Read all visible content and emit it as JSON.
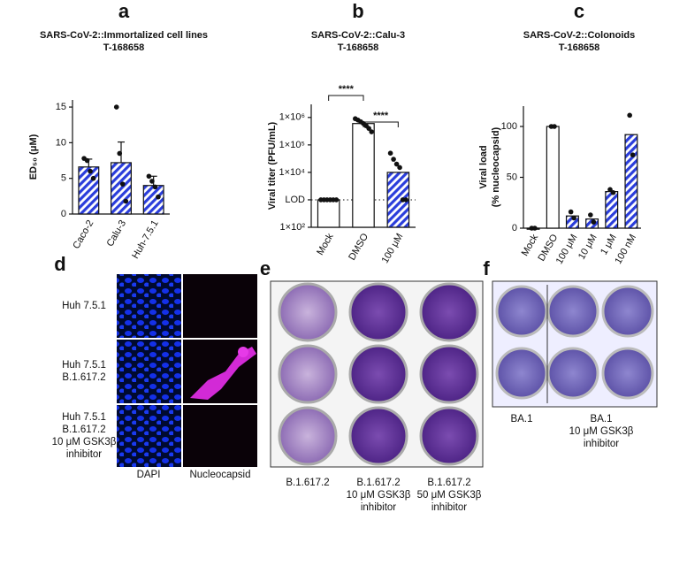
{
  "chart_data": [
    {
      "type": "bar",
      "label": "a",
      "title": "SARS-CoV-2::Immortalized cell lines",
      "subtitle": "T-168658",
      "y_label": [
        "ED₅₀ (μM)"
      ],
      "categories": [
        "Caco-2",
        "Calu-3",
        "Huh-7.5.1"
      ],
      "values": [
        6.6,
        7.2,
        4.0
      ],
      "errors": [
        1.1,
        2.9,
        1.3
      ],
      "points": [
        [
          7.8,
          7.5,
          6.0,
          5.0
        ],
        [
          15,
          8.5,
          4.2,
          1.8
        ],
        [
          5.3,
          4.6,
          3.8,
          2.4
        ]
      ],
      "hatched": [
        true,
        true,
        true
      ],
      "color": "#2a3ddb",
      "ylim": [
        0,
        16
      ],
      "yticks": [
        0,
        5,
        10,
        15
      ]
    },
    {
      "type": "bar",
      "label": "b",
      "title": "SARS-CoV-2::Calu-3",
      "subtitle": "T-168658",
      "y_label": [
        "Viral titer (PFU/mL)"
      ],
      "categories": [
        "Mock",
        "DMSO",
        "100 μM"
      ],
      "values": [
        1000,
        600000,
        10000
      ],
      "points": [
        [
          1000,
          1000,
          1000,
          1000,
          1000,
          1000
        ],
        [
          900000,
          800000,
          700000,
          600000,
          500000,
          400000,
          300000
        ],
        [
          50000,
          30000,
          20000,
          15000,
          1000,
          1000
        ]
      ],
      "hatched": [
        false,
        false,
        true
      ],
      "color": "#2a3ddb",
      "log_scale": true,
      "hline": 1000,
      "annotations": [
        "****",
        "****"
      ],
      "ylim": [
        100,
        3000000
      ],
      "yticks": [
        {
          "value": 100,
          "label": "1×10²"
        },
        {
          "value": 1000,
          "label": "LOD"
        },
        {
          "value": 10000,
          "label": "1×10⁴"
        },
        {
          "value": 100000,
          "label": "1×10⁵"
        },
        {
          "value": 1000000,
          "label": "1×10⁶"
        }
      ]
    },
    {
      "type": "bar",
      "label": "c",
      "title": "SARS-CoV-2::Colonoids",
      "subtitle": "T-168658",
      "y_label": [
        "Viral load",
        "(% nucleocapsid)"
      ],
      "categories": [
        "Mock",
        "DMSO",
        "100 μM",
        "10 μM",
        "1 μM",
        "100 nM"
      ],
      "values": [
        0,
        100,
        12,
        9,
        36,
        92
      ],
      "points": [
        [
          0,
          0
        ],
        [
          100,
          100
        ],
        [
          16,
          10
        ],
        [
          13,
          6
        ],
        [
          38,
          35
        ],
        [
          111,
          72
        ]
      ],
      "hatched": [
        false,
        false,
        true,
        true,
        true,
        true
      ],
      "color": "#2a3ddb",
      "ylim": [
        0,
        120
      ],
      "yticks": [
        0,
        50,
        100
      ]
    }
  ],
  "panels": [
    {
      "label": "d",
      "rows": [
        [
          "Huh 7.5.1"
        ],
        [
          "Huh 7.5.1",
          "B.1.617.2"
        ],
        [
          "Huh 7.5.1",
          "B.1.617.2",
          "10 μM GSK3β",
          "inhibitor"
        ]
      ],
      "columns": [
        "DAPI",
        "Nucleocapsid"
      ]
    },
    {
      "label": "e",
      "captions": [
        [
          "B.1.617.2"
        ],
        [
          "B.1.617.2",
          "10 μM GSK3β",
          "inhibitor"
        ],
        [
          "B.1.617.2",
          "50 μM GSK3β",
          "inhibitor"
        ]
      ]
    },
    {
      "label": "f",
      "captions": [
        [
          "BA.1"
        ],
        [
          "BA.1",
          "10 μM GSK3β",
          "inhibitor"
        ]
      ]
    }
  ]
}
